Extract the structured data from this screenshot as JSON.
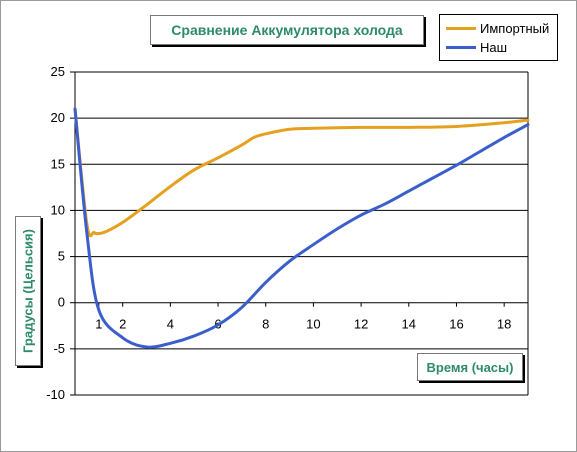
{
  "chart_data": {
    "type": "line",
    "title": "Сравнение Аккумулятора холода",
    "xlabel": "Время (часы)",
    "ylabel": "Градусы (Цельсия)",
    "ylim": [
      -10,
      25
    ],
    "yticks": [
      "25",
      "20",
      "15",
      "10",
      "5",
      "0",
      "-5",
      "-10"
    ],
    "xticks": [
      "1",
      "2",
      "4",
      "6",
      "8",
      "10",
      "12",
      "14",
      "16",
      "18"
    ],
    "grid": "horizontal",
    "legend_position": "top-right",
    "series": [
      {
        "name": "Импортный",
        "color": "#e6a020",
        "points": [
          [
            0,
            21
          ],
          [
            0.5,
            8.5
          ],
          [
            0.8,
            7.6
          ],
          [
            1.0,
            7.5
          ],
          [
            1.3,
            7.7
          ],
          [
            2.0,
            8.7
          ],
          [
            3.0,
            10.6
          ],
          [
            4.0,
            12.6
          ],
          [
            5.0,
            14.4
          ],
          [
            6.0,
            15.7
          ],
          [
            7.0,
            17.1
          ],
          [
            7.5,
            17.9
          ],
          [
            8.0,
            18.3
          ],
          [
            9.0,
            18.8
          ],
          [
            10.0,
            18.9
          ],
          [
            12.0,
            19.0
          ],
          [
            14.0,
            19.0
          ],
          [
            16.0,
            19.1
          ],
          [
            18.0,
            19.5
          ],
          [
            19.0,
            19.8
          ]
        ]
      },
      {
        "name": "Наш",
        "color": "#3a5fcd",
        "points": [
          [
            0,
            21
          ],
          [
            0.5,
            7.5
          ],
          [
            1.0,
            -0.8
          ],
          [
            2.0,
            -3.8
          ],
          [
            3.0,
            -4.8
          ],
          [
            4.0,
            -4.4
          ],
          [
            5.0,
            -3.6
          ],
          [
            6.0,
            -2.4
          ],
          [
            7.0,
            -0.5
          ],
          [
            8.0,
            2.2
          ],
          [
            9.0,
            4.5
          ],
          [
            10.0,
            6.3
          ],
          [
            11.0,
            8.0
          ],
          [
            12.0,
            9.5
          ],
          [
            13.0,
            10.7
          ],
          [
            14.0,
            12.1
          ],
          [
            15.0,
            13.5
          ],
          [
            16.0,
            14.9
          ],
          [
            17.0,
            16.4
          ],
          [
            18.0,
            17.9
          ],
          [
            19.0,
            19.3
          ]
        ]
      }
    ]
  }
}
